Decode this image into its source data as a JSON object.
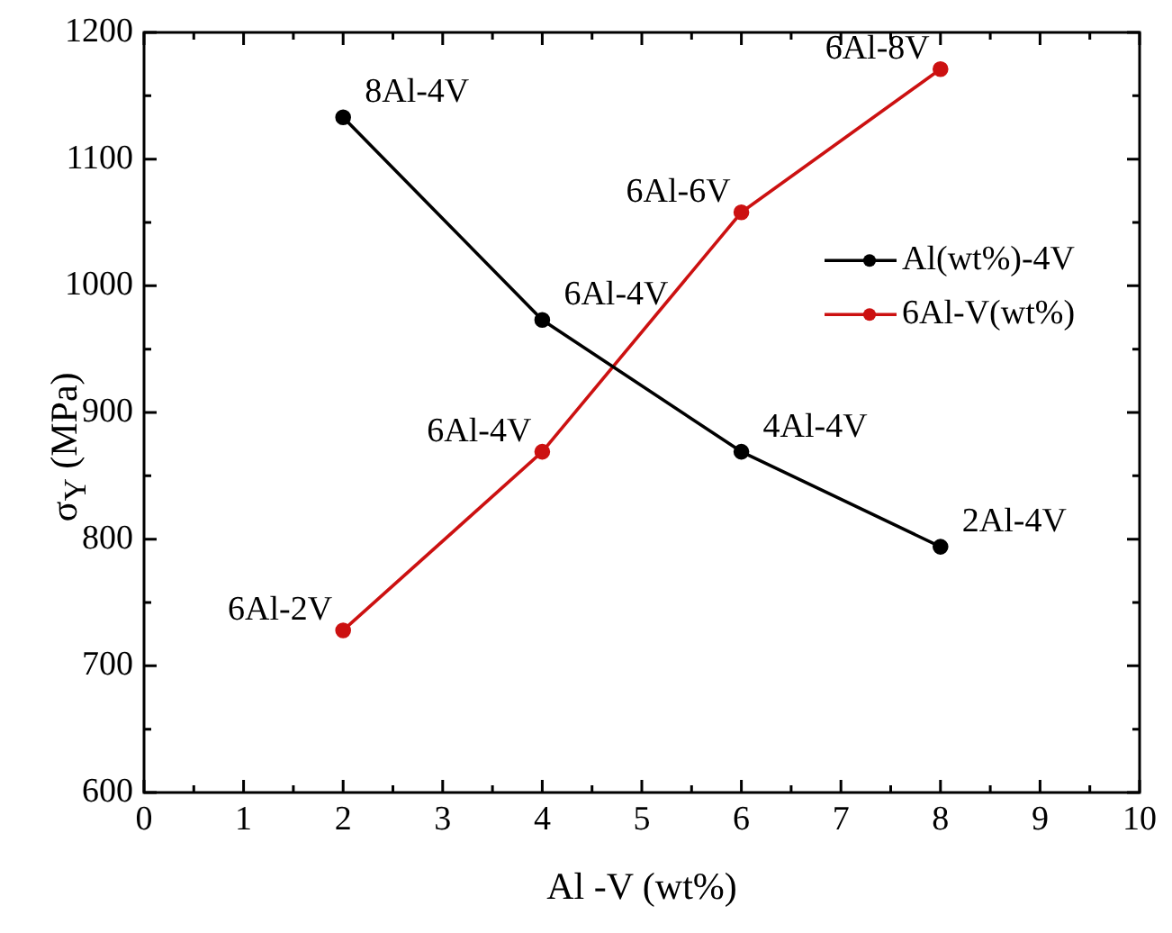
{
  "chart_data": {
    "type": "line",
    "xlabel": "Al -V (wt%)",
    "ylabel": "σ$_{Y}$ (MPa)",
    "x": [
      2,
      4,
      6,
      8
    ],
    "series": [
      {
        "name": "Al(wt%)-4V",
        "color": "#000000",
        "values": [
          1133,
          973,
          869,
          794
        ]
      },
      {
        "name": "6Al-V(wt%)",
        "color": "#cc1111",
        "values": [
          728,
          869,
          1058,
          1171
        ]
      }
    ],
    "xlim": [
      0,
      10
    ],
    "xticks": [
      0,
      1,
      2,
      3,
      4,
      5,
      6,
      7,
      8,
      9,
      10
    ],
    "ylim": [
      600,
      1200
    ],
    "yticks": [
      600,
      700,
      800,
      900,
      1000,
      1100,
      1200
    ],
    "grid": false,
    "legend": "right",
    "marker": "circle",
    "line_style": "solid",
    "annotations": [
      {
        "text": "8Al-4V",
        "x": 2,
        "y": 1133
      },
      {
        "text": "6Al-4V",
        "x": 4,
        "y": 973
      },
      {
        "text": "4Al-4V",
        "x": 6,
        "y": 869
      },
      {
        "text": "2Al-4V",
        "x": 8,
        "y": 794
      },
      {
        "text": "6Al-2V",
        "x": 2,
        "y": 728
      },
      {
        "text": "6Al-4V",
        "x": 4,
        "y": 869
      },
      {
        "text": "6Al-6V",
        "x": 6,
        "y": 1058
      },
      {
        "text": "6Al-8V",
        "x": 8,
        "y": 1171
      }
    ]
  }
}
